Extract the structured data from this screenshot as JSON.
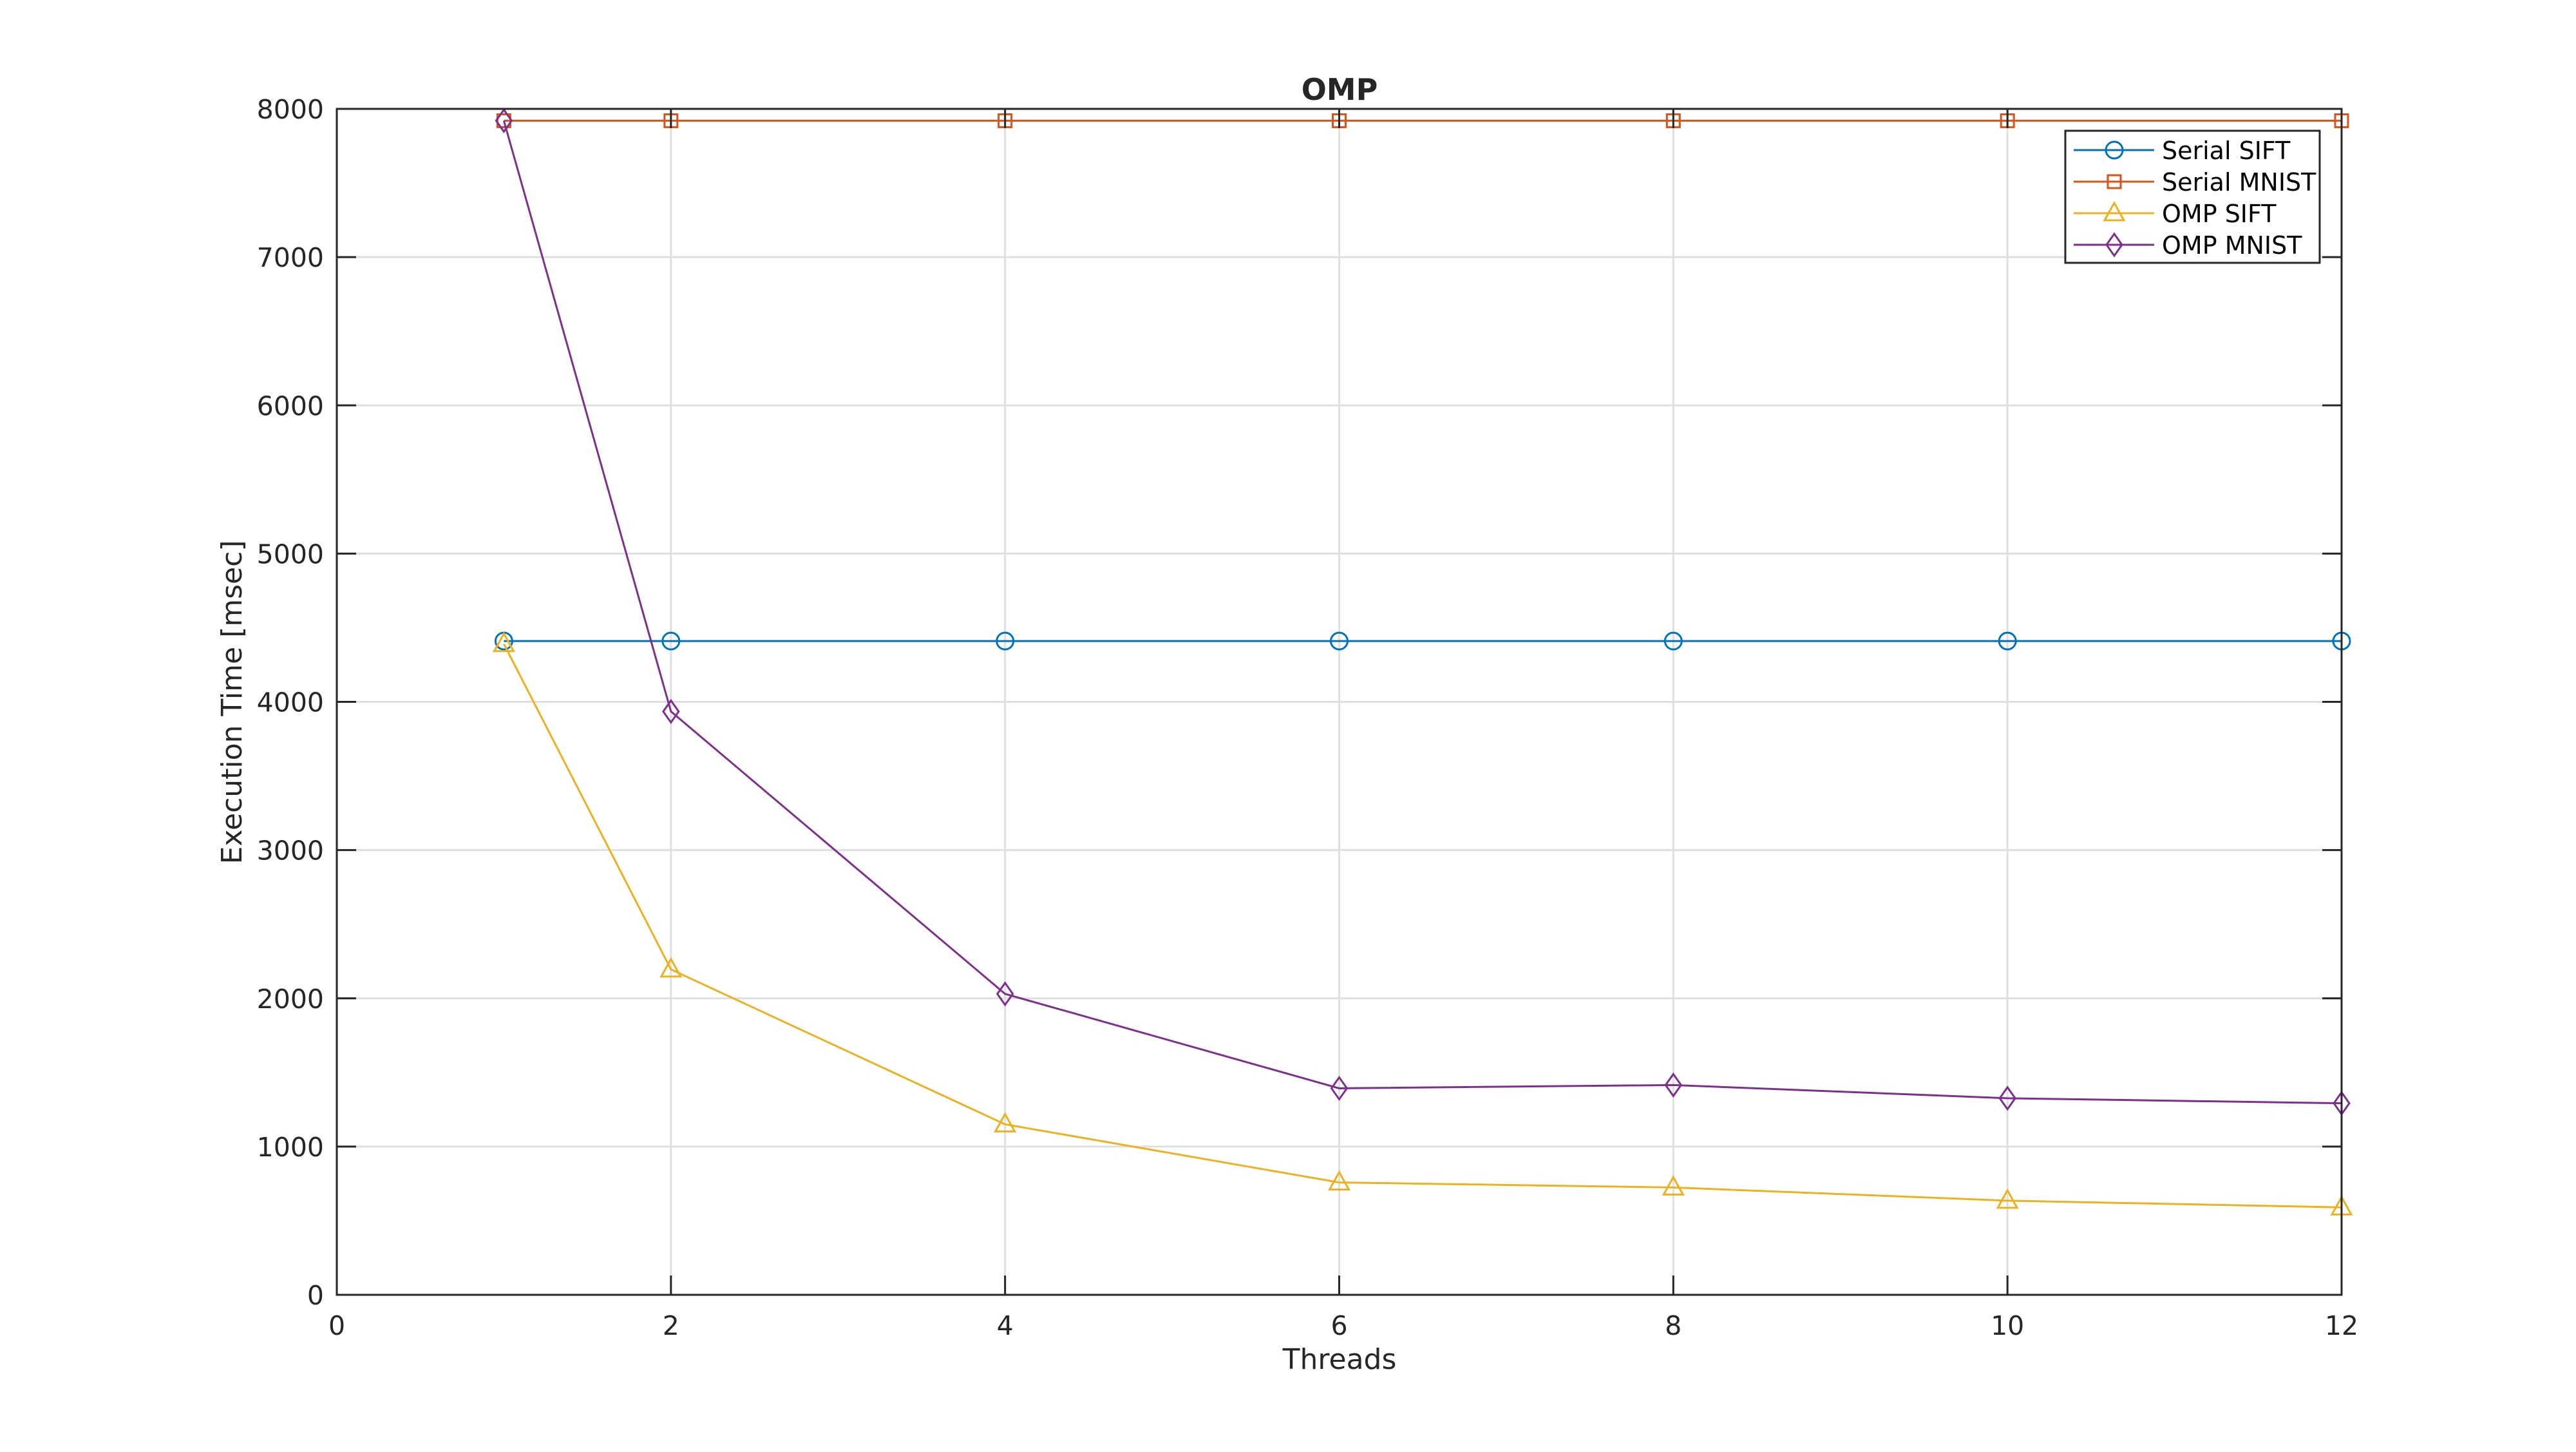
{
  "chart_data": {
    "type": "line",
    "title": "OMP",
    "xlabel": "Threads",
    "ylabel": "Execution Time [msec]",
    "xlim": [
      0,
      12
    ],
    "ylim": [
      0,
      8000
    ],
    "xticks": [
      0,
      2,
      4,
      6,
      8,
      10,
      12
    ],
    "yticks": [
      0,
      1000,
      2000,
      3000,
      4000,
      5000,
      6000,
      7000,
      8000
    ],
    "grid": true,
    "legend_placement": "top-right",
    "x": [
      1,
      2,
      4,
      6,
      8,
      10,
      12
    ],
    "series": [
      {
        "name": "Serial SIFT",
        "marker": "circle",
        "color": "#0072BD",
        "values": [
          4410,
          4410,
          4410,
          4410,
          4410,
          4410,
          4410
        ]
      },
      {
        "name": "Serial MNIST",
        "marker": "square",
        "color": "#D95319",
        "values": [
          7920,
          7920,
          7920,
          7920,
          7920,
          7920,
          7920
        ]
      },
      {
        "name": "OMP SIFT",
        "marker": "triangle",
        "color": "#EDB120",
        "values": [
          4390,
          2195,
          1150,
          758,
          724,
          635,
          590
        ]
      },
      {
        "name": "OMP MNIST",
        "marker": "diamond",
        "color": "#7E2F8E",
        "values": [
          7920,
          3935,
          2030,
          1393,
          1415,
          1326,
          1292
        ]
      }
    ]
  }
}
